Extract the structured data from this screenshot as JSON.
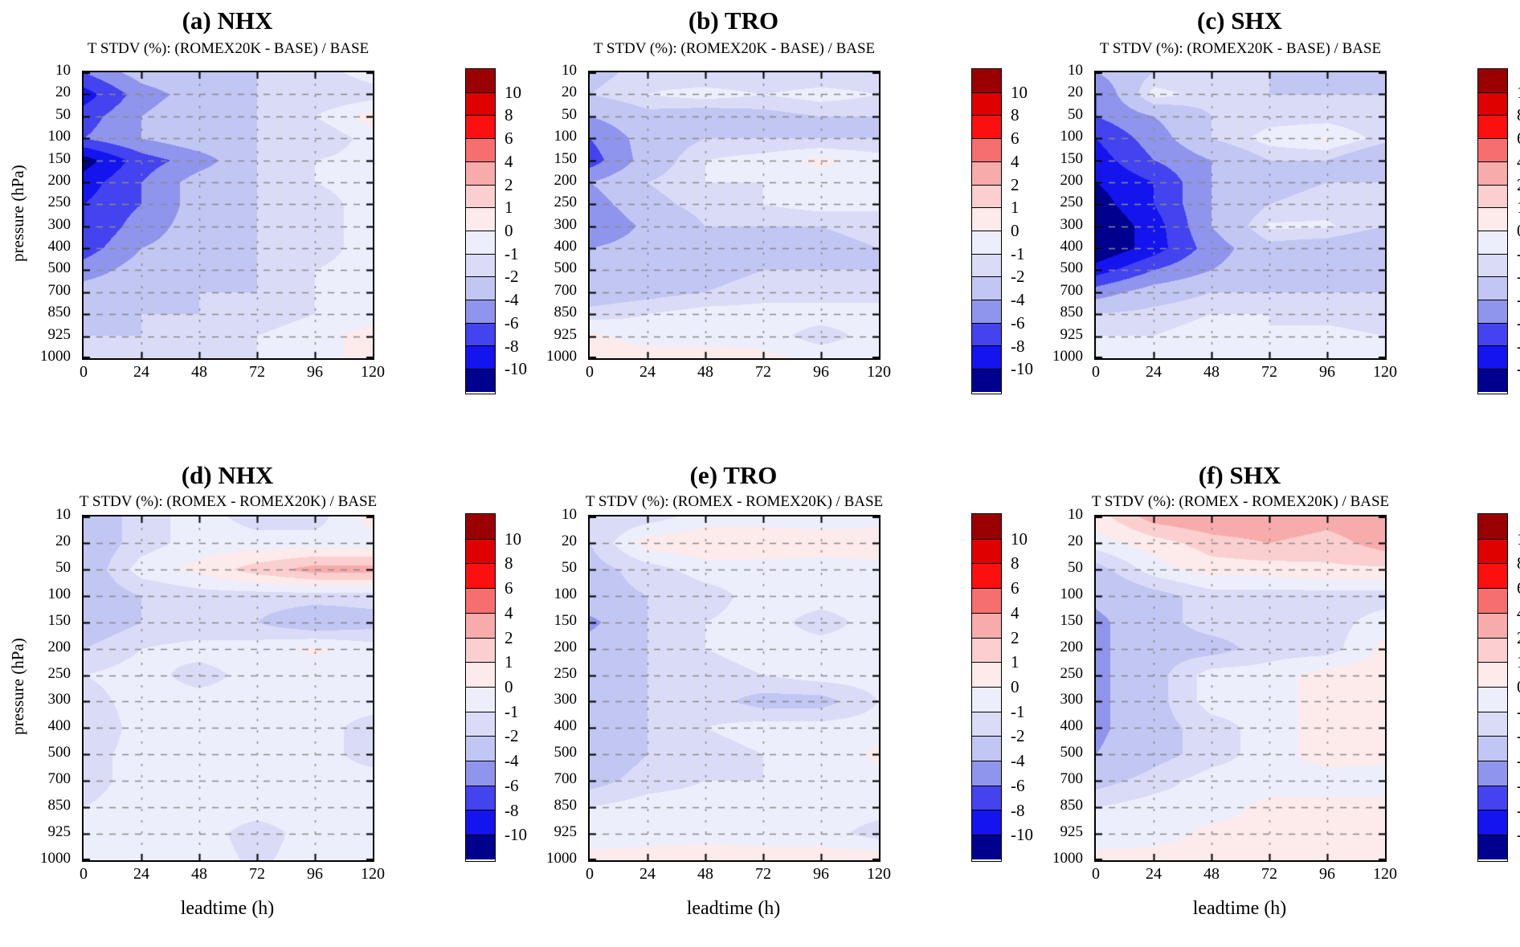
{
  "figure": {
    "y_axis_label": "pressure (hPa)",
    "x_axis_label": "leadtime (h)",
    "x_tick_labels": [
      "0",
      "24",
      "48",
      "72",
      "96",
      "120"
    ],
    "y_tick_labels": [
      "10",
      "20",
      "50",
      "100",
      "150",
      "200",
      "250",
      "300",
      "400",
      "500",
      "700",
      "850",
      "925",
      "1000"
    ],
    "colorbar_labels": [
      "10",
      "8",
      "6",
      "4",
      "2",
      "1",
      "0",
      "-1",
      "-2",
      "-4",
      "-6",
      "-8",
      "-10"
    ]
  },
  "chart_data": {
    "type": "heatmap",
    "note": "Filled contour plots of relative temperature standard deviation difference (%) vs forecast leadtime and pressure",
    "x_hours": [
      0,
      24,
      48,
      72,
      96,
      120
    ],
    "pressure_hpa": [
      10,
      20,
      50,
      100,
      150,
      200,
      250,
      300,
      400,
      500,
      700,
      850,
      925,
      1000
    ],
    "xlabel": "leadtime (h)",
    "ylabel": "pressure (hPa)",
    "contour_levels": [
      -10,
      -8,
      -6,
      -4,
      -2,
      -1,
      0,
      1,
      2,
      4,
      6,
      8,
      10
    ],
    "band_colors_low_to_high": [
      "#00008f",
      "#1414ef",
      "#4343ef",
      "#8f94ec",
      "#c2c6f3",
      "#dadcf7",
      "#eceffb",
      "#fdeaea",
      "#fbcfcf",
      "#f8abab",
      "#f66e6e",
      "#fb0f0f",
      "#df0000",
      "#9b0000"
    ],
    "gridline_color": "#8a8a8a",
    "panels": [
      {
        "id": "a",
        "title": "(a) NHX",
        "subtitle": "T STDV (%): (ROMEX20K - BASE) / BASE",
        "values": [
          [
            -6,
            -3,
            -2,
            -2,
            -1.5,
            -0.5
          ],
          [
            -9,
            -5,
            -3,
            -2,
            -2,
            -1.5
          ],
          [
            -7,
            -4,
            -2,
            -2,
            -1,
            0.5
          ],
          [
            -6,
            -4,
            -2.5,
            -2,
            -2,
            -0.5
          ],
          [
            -11,
            -7,
            -5,
            -2,
            -1,
            -0.5
          ],
          [
            -9,
            -6,
            -3,
            -2,
            -1,
            -0.5
          ],
          [
            -8,
            -6,
            -3,
            -2,
            -1.5,
            -0.5
          ],
          [
            -8,
            -5,
            -3,
            -2,
            -1.5,
            -0.5
          ],
          [
            -7,
            -4,
            -3,
            -2,
            -1.5,
            -0.5
          ],
          [
            -5,
            -3,
            -2.5,
            -2,
            -1,
            -0.5
          ],
          [
            -3,
            -2.5,
            -2,
            -2,
            -1,
            -0.5
          ],
          [
            -2.5,
            -2,
            -2,
            -1.5,
            -1,
            -0.5
          ],
          [
            -2,
            -2,
            -1.5,
            -1,
            -0.5,
            0.5
          ],
          [
            -2,
            -1.5,
            -1,
            -1,
            -0.5,
            0.5
          ]
        ]
      },
      {
        "id": "b",
        "title": "(b) TRO",
        "subtitle": "T STDV (%): (ROMEX20K - BASE) / BASE",
        "values": [
          [
            -2.5,
            -1.5,
            -2,
            -2,
            -2,
            -2
          ],
          [
            -2,
            -1,
            -0.5,
            -1,
            -0.5,
            -1
          ],
          [
            -4,
            -2.5,
            -3,
            -2.5,
            -2,
            -2
          ],
          [
            -6,
            -3,
            -2,
            -2,
            -2,
            -2
          ],
          [
            -7,
            -3,
            -1,
            -0.5,
            0.3,
            -0.5
          ],
          [
            -4,
            -2,
            -1,
            -1,
            -0.5,
            -1
          ],
          [
            -5,
            -2.5,
            -1.5,
            -1,
            -0.5,
            -1
          ],
          [
            -6,
            -3.5,
            -2,
            -2,
            -2,
            -1
          ],
          [
            -4,
            -3,
            -2,
            -2,
            -3,
            -2
          ],
          [
            -4,
            -3,
            -2.5,
            -2,
            -2,
            -2
          ],
          [
            -3,
            -2.5,
            -2,
            -1.5,
            -1.5,
            -1.5
          ],
          [
            -1.5,
            -1,
            -0.5,
            -0.5,
            -0.5,
            -0.5
          ],
          [
            0.3,
            -0.5,
            -0.5,
            -0.5,
            -1.5,
            -0.5
          ],
          [
            0.3,
            0.6,
            0.6,
            0.3,
            -0.3,
            -0.3
          ]
        ]
      },
      {
        "id": "c",
        "title": "(c) SHX",
        "subtitle": "T STDV (%): (ROMEX20K - BASE) / BASE",
        "values": [
          [
            -4,
            -2,
            -2,
            -2,
            -2,
            -3
          ],
          [
            -6,
            -0.5,
            -1.5,
            -2,
            -2,
            -2
          ],
          [
            -6,
            -4,
            -2,
            -1.5,
            -1.5,
            -2
          ],
          [
            -8,
            -5,
            -2,
            -0.5,
            0.15,
            -1.5
          ],
          [
            -9,
            -6,
            -4,
            -2,
            -2,
            -4
          ],
          [
            -10,
            -8,
            -4,
            -2.5,
            -2,
            -2
          ],
          [
            -11,
            -8,
            -4,
            -2,
            -1.5,
            -2
          ],
          [
            -12,
            -9,
            -4,
            -0.8,
            -0.8,
            -2
          ],
          [
            -12,
            -9,
            -5,
            -2.5,
            -3,
            -4
          ],
          [
            -9,
            -6,
            -4,
            -2.5,
            -2,
            -2
          ],
          [
            -5,
            -3,
            -2,
            -2,
            -2,
            -2
          ],
          [
            -2,
            -1.5,
            -1,
            -1,
            -1.5,
            -2
          ],
          [
            -1,
            -1,
            -0.5,
            -1,
            -0.5,
            -1
          ],
          [
            -1,
            -0.5,
            -0.5,
            -0.5,
            -0.5,
            -1
          ]
        ]
      },
      {
        "id": "d",
        "title": "(d) NHX",
        "subtitle": "T STDV (%): (ROMEX - ROMEX20K) / BASE",
        "values": [
          [
            -3,
            -1.5,
            -0.5,
            -1.5,
            -1.5,
            0.5
          ],
          [
            -3,
            -1.5,
            -0.5,
            -0.5,
            -0.5,
            -0.5
          ],
          [
            -3,
            -0.5,
            0.3,
            1.5,
            2.5,
            2.5
          ],
          [
            -3,
            -2,
            -1.5,
            -1.5,
            -1.5,
            -1.5
          ],
          [
            -3,
            -2,
            -2,
            -2,
            -3,
            -2.5
          ],
          [
            -2,
            -1,
            -0.5,
            -0.5,
            0.2,
            -0.5
          ],
          [
            -1,
            -0.5,
            -1.5,
            -0.5,
            -0.5,
            -0.5
          ],
          [
            -1.5,
            -0.5,
            -0.5,
            -0.5,
            -0.5,
            -0.5
          ],
          [
            -2,
            -0.5,
            -0.5,
            -0.5,
            -0.5,
            -1.5
          ],
          [
            -1.5,
            -0.5,
            -0.5,
            -0.5,
            -0.5,
            -1.5
          ],
          [
            -1.5,
            -0.5,
            -0.5,
            -0.5,
            -0.5,
            -0.5
          ],
          [
            -1,
            -0.5,
            -0.5,
            -0.5,
            -0.5,
            -0.5
          ],
          [
            -0.5,
            -0.5,
            -0.5,
            -1.5,
            -0.5,
            -0.5
          ],
          [
            -0.5,
            -0.5,
            -0.5,
            -1.2,
            -0.5,
            -0.5
          ]
        ]
      },
      {
        "id": "e",
        "title": "(e) TRO",
        "subtitle": "T STDV (%): (ROMEX - ROMEX20K) / BASE",
        "values": [
          [
            -2,
            -1.5,
            -0.5,
            -0.5,
            -0.5,
            -0.5
          ],
          [
            -2,
            0.5,
            0.8,
            0.8,
            0.5,
            0.8
          ],
          [
            -2.5,
            -1.5,
            -0.5,
            -0.5,
            -0.5,
            -0.5
          ],
          [
            -2.5,
            -2,
            -1.5,
            -0.5,
            -0.5,
            -0.5
          ],
          [
            -4.5,
            -2,
            -1,
            -0.5,
            -1.5,
            -0.5
          ],
          [
            -3,
            -2,
            -1,
            -0.5,
            -0.5,
            -0.5
          ],
          [
            -3,
            -2,
            -1.5,
            -1,
            -0.5,
            -0.5
          ],
          [
            -3,
            -2,
            -1.5,
            -2.5,
            -2.5,
            -1
          ],
          [
            -3,
            -2,
            -1,
            -0.5,
            -0.5,
            -0.5
          ],
          [
            -3,
            -2,
            -1.5,
            -1,
            -1,
            0.3
          ],
          [
            -2.5,
            -1.5,
            -1,
            -1,
            -0.5,
            -0.5
          ],
          [
            -1,
            -0.5,
            -0.5,
            -0.5,
            -0.5,
            -0.5
          ],
          [
            -0.5,
            -0.5,
            -0.5,
            -0.5,
            -0.5,
            -1.5
          ],
          [
            0.3,
            0.5,
            0.8,
            0.5,
            0.5,
            0.8
          ]
        ]
      },
      {
        "id": "f",
        "title": "(f) SHX",
        "subtitle": "T STDV (%): (ROMEX - ROMEX20K) / BASE",
        "values": [
          [
            0.5,
            2.5,
            3,
            3,
            2.5,
            3
          ],
          [
            -0.5,
            0.5,
            1.5,
            2,
            1.5,
            2.5
          ],
          [
            -2.5,
            -0.5,
            0.5,
            0.5,
            0.8,
            0.8
          ],
          [
            -3.5,
            -2.5,
            -1.5,
            -1.5,
            -1.5,
            -1.5
          ],
          [
            -4.5,
            -2.5,
            -1.5,
            -1.5,
            -1.5,
            -0.5
          ],
          [
            -4.5,
            -2.5,
            -2.5,
            -1.5,
            -1.5,
            0.3
          ],
          [
            -4.5,
            -2.5,
            -0.5,
            -0.5,
            0.5,
            0.5
          ],
          [
            -4.5,
            -2.5,
            -0.5,
            -0.5,
            0.5,
            0.5
          ],
          [
            -4.5,
            -2.5,
            -1.5,
            -0.5,
            0.5,
            0.5
          ],
          [
            -4,
            -2.5,
            -1.5,
            -0.5,
            0.5,
            0.3
          ],
          [
            -2.5,
            -1.5,
            -0.5,
            -0.5,
            -0.5,
            -0.5
          ],
          [
            -1,
            -0.5,
            -0.5,
            0.3,
            0.3,
            0.3
          ],
          [
            -0.5,
            -0.5,
            0.3,
            0.3,
            0.3,
            0.3
          ],
          [
            0.3,
            0.5,
            0.5,
            0.5,
            0.5,
            0.5
          ]
        ]
      }
    ]
  }
}
